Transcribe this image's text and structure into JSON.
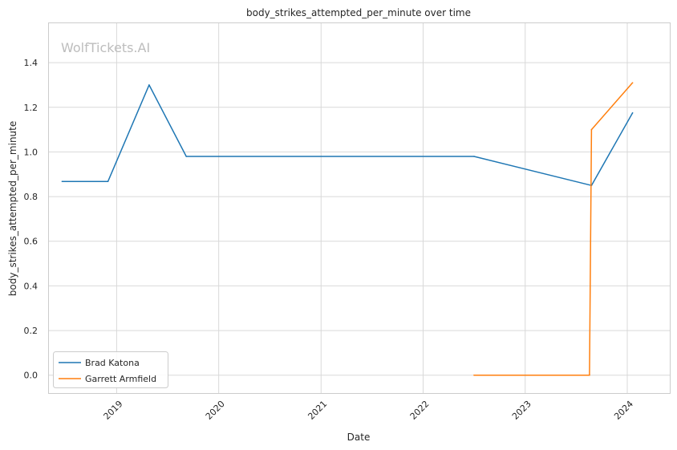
{
  "chart_data": {
    "type": "line",
    "title": "body_strikes_attempted_per_minute over time",
    "xlabel": "Date",
    "ylabel": "body_strikes_attempted_per_minute",
    "watermark": "WolfTickets.AI",
    "x_ticks": [
      "2019",
      "2020",
      "2021",
      "2022",
      "2023",
      "2024"
    ],
    "y_ticks": [
      "0.0",
      "0.2",
      "0.4",
      "0.6",
      "0.8",
      "1.0",
      "1.2",
      "1.4"
    ],
    "xlim": [
      "2018-05-01",
      "2024-06-01"
    ],
    "ylim": [
      -0.08,
      1.58
    ],
    "grid": true,
    "legend_position": "lower-left",
    "series": [
      {
        "name": "Brad Katona",
        "color": "#1f77b4",
        "points": [
          {
            "x": "2018-06-20",
            "y": 0.868
          },
          {
            "x": "2018-12-01",
            "y": 0.868
          },
          {
            "x": "2019-04-27",
            "y": 1.3
          },
          {
            "x": "2019-09-07",
            "y": 0.98
          },
          {
            "x": "2022-07-02",
            "y": 0.98
          },
          {
            "x": "2023-08-26",
            "y": 0.85
          },
          {
            "x": "2024-01-20",
            "y": 1.175
          }
        ]
      },
      {
        "name": "Garrett Armfield",
        "color": "#ff7f0e",
        "points": [
          {
            "x": "2022-07-02",
            "y": 0.0
          },
          {
            "x": "2023-08-19",
            "y": 0.0
          },
          {
            "x": "2023-08-26",
            "y": 1.1
          },
          {
            "x": "2024-01-20",
            "y": 1.31
          }
        ]
      }
    ]
  }
}
